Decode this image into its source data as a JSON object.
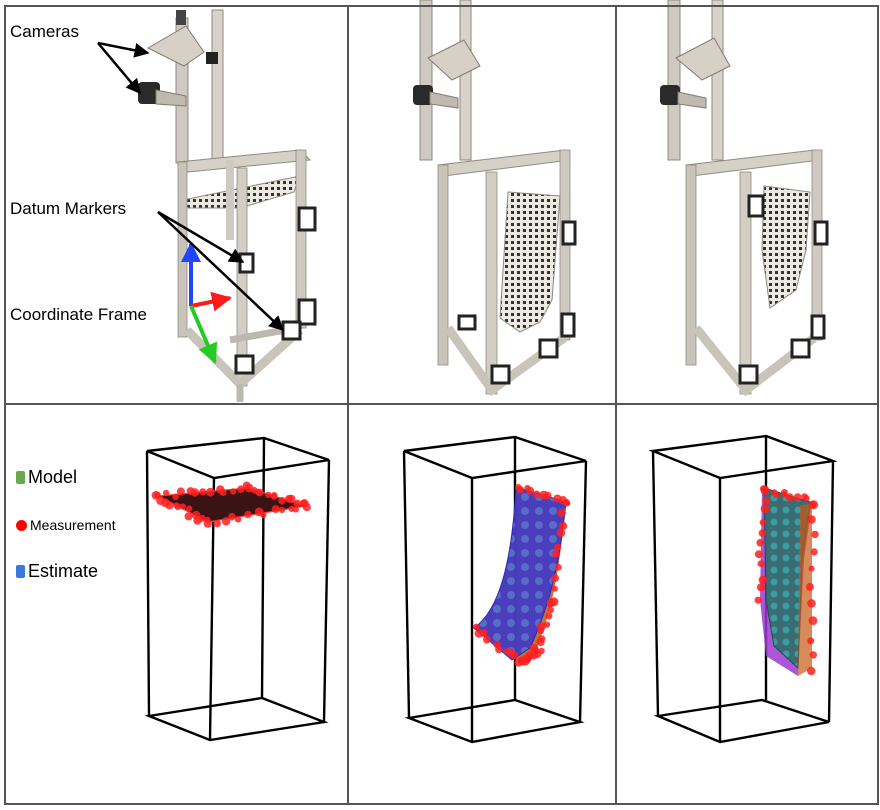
{
  "callouts": {
    "cameras": "Cameras",
    "datum_markers": "Datum Markers",
    "coordinate_frame": "Coordinate Frame"
  },
  "legend": [
    {
      "label": "Model",
      "color": "#6aa84f"
    },
    {
      "label": "Measurement",
      "color": "#ff0000"
    },
    {
      "label": "Estimate",
      "color": "#3c78d8"
    }
  ],
  "colors": {
    "frame": "#c9c4ba",
    "grid_border": "#555555",
    "axis_x": "#ff1a1a",
    "axis_y": "#22cc22",
    "axis_z": "#2244ff"
  }
}
